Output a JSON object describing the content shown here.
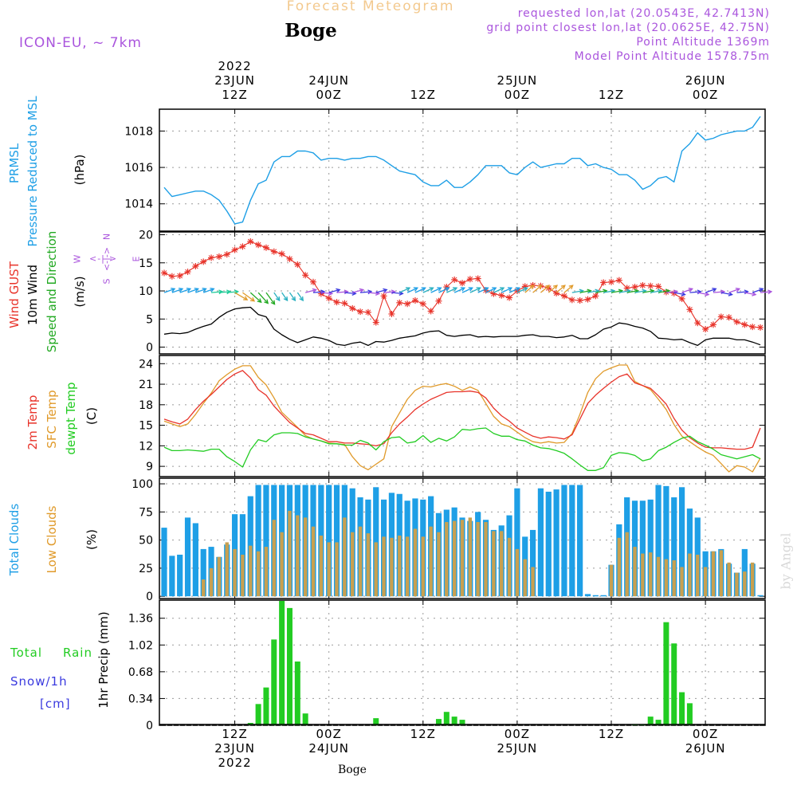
{
  "header": {
    "title": "Forecast Meteogram",
    "location": "Boge",
    "model": "ICON-EU, ~ 7km",
    "requested": "requested lon,lat (20.0543E, 42.7413N)",
    "grid_point": "grid point closest lon,lat (20.0625E, 42.75N)",
    "point_altitude": "Point Altitude 1369m",
    "model_altitude": "Model Point Altitude 1578.75m",
    "footer_location": "Boge",
    "watermark": "by Angel"
  },
  "colors": {
    "pressure": "#1e9fe6",
    "gust": "#e8332a",
    "wind": "#000000",
    "direction": "#22a922",
    "t2m": "#e8332a",
    "sfc": "#e09a2a",
    "dewpt": "#22cc22",
    "total_clouds": "#1e9fe6",
    "low_clouds": "#c8a050",
    "rain": "#22cc22",
    "snow": "#3a3adf",
    "compass": "#aa55dd",
    "header_purple": "#aa55dd",
    "title_orange": "#f3c98e"
  },
  "axes": {
    "top_labels": [
      {
        "top": "2022",
        "mid": "23JUN",
        "bot": "12Z"
      },
      {
        "top": "",
        "mid": "24JUN",
        "bot": "00Z"
      },
      {
        "top": "",
        "mid": "",
        "bot": "12Z"
      },
      {
        "top": "",
        "mid": "25JUN",
        "bot": "00Z"
      },
      {
        "top": "",
        "mid": "",
        "bot": "12Z"
      },
      {
        "top": "",
        "mid": "26JUN",
        "bot": "00Z"
      }
    ],
    "bottom_labels": [
      {
        "a": "12Z",
        "b": "23JUN",
        "c": "2022"
      },
      {
        "a": "00Z",
        "b": "24JUN",
        "c": ""
      },
      {
        "a": "12Z",
        "b": "",
        "c": ""
      },
      {
        "a": "00Z",
        "b": "25JUN",
        "c": ""
      },
      {
        "a": "12Z",
        "b": "",
        "c": ""
      },
      {
        "a": "00Z",
        "b": "26JUN",
        "c": ""
      }
    ]
  },
  "chart_data": [
    {
      "type": "line",
      "panel": "pressure",
      "ylabel_lines": [
        "PRMSL",
        "Pressure Reduced to MSL"
      ],
      "unit": "(hPa)",
      "ylim": [
        1012.5,
        1019.2
      ],
      "yticks": [
        1014,
        1016,
        1018
      ],
      "x_hours_from_first": [
        0,
        1,
        2,
        3,
        4,
        5,
        6,
        7,
        8,
        9,
        10,
        11,
        12,
        13,
        14,
        15,
        16,
        17,
        18,
        19,
        20,
        21,
        22,
        23,
        24,
        25,
        26,
        27,
        28,
        29,
        30,
        31,
        32,
        33,
        34,
        35,
        36,
        37,
        38,
        39,
        40,
        41,
        42,
        43,
        44,
        45,
        46,
        47,
        48,
        49,
        50,
        51,
        52,
        53,
        54,
        55,
        56,
        57,
        58,
        59,
        60,
        61,
        62,
        63,
        64,
        65,
        66,
        67,
        68,
        69,
        70,
        71,
        72,
        73,
        74,
        75,
        76
      ],
      "series": [
        {
          "values": [
            1014.9,
            1014.4,
            1014.5,
            1014.6,
            1014.7,
            1014.7,
            1014.5,
            1014.2,
            1013.6,
            1012.9,
            1013.0,
            1014.2,
            1015.1,
            1015.3,
            1016.3,
            1016.6,
            1016.6,
            1016.9,
            1016.9,
            1016.8,
            1016.4,
            1016.5,
            1016.5,
            1016.4,
            1016.5,
            1016.5,
            1016.6,
            1016.6,
            1016.4,
            1016.1,
            1015.8,
            1015.7,
            1015.6,
            1015.2,
            1015.0,
            1015.0,
            1015.3,
            1014.9,
            1014.9,
            1015.2,
            1015.6,
            1016.1,
            1016.1,
            1016.1,
            1015.7,
            1015.6,
            1016.0,
            1016.3,
            1016.0,
            1016.1,
            1016.2,
            1016.2,
            1016.5,
            1016.5,
            1016.1,
            1016.2,
            1016.0,
            1015.9,
            1015.6,
            1015.6,
            1015.3,
            1014.8,
            1015.0,
            1015.4,
            1015.5,
            1015.2,
            1016.9,
            1017.3,
            1017.9,
            1017.5,
            1017.6,
            1017.8,
            1017.9,
            1018.0,
            1018.0,
            1018.2,
            1018.8
          ]
        }
      ]
    },
    {
      "type": "line",
      "panel": "wind",
      "ylabel_lines": [
        "Wind GUST",
        "10m Wind",
        "Speed and Direction"
      ],
      "unit": "(m/s)",
      "compass": {
        "n": "N",
        "s": "S",
        "w": "W",
        "e": "E",
        "line": "<-|->"
      },
      "ylim": [
        -1.2,
        20.5
      ],
      "yticks": [
        0,
        5,
        10,
        15,
        20
      ],
      "series": [
        {
          "name": "Wind GUST",
          "values": [
            13.2,
            12.6,
            12.7,
            13.4,
            14.4,
            15.2,
            15.9,
            16.1,
            16.5,
            17.3,
            17.9,
            18.8,
            18.2,
            17.7,
            17.0,
            16.6,
            15.7,
            14.7,
            12.8,
            11.6,
            9.5,
            8.7,
            8.0,
            7.8,
            6.9,
            6.3,
            6.2,
            4.4,
            9.1,
            5.9,
            7.9,
            7.7,
            8.3,
            7.7,
            6.4,
            8.2,
            10.7,
            12.0,
            11.4,
            12.1,
            12.2,
            10.1,
            9.5,
            9.2,
            8.8,
            10.0,
            10.8,
            11.0,
            10.9,
            10.5,
            9.6,
            9.1,
            8.4,
            8.3,
            8.5,
            9.1,
            11.5,
            11.6,
            11.9,
            10.5,
            10.7,
            11.0,
            10.9,
            10.8,
            9.8,
            9.6,
            8.6,
            6.7,
            4.3,
            3.2,
            4.0,
            5.4,
            5.3,
            4.5,
            4.0,
            3.6,
            3.5
          ]
        },
        {
          "name": "10m Wind",
          "values": [
            2.3,
            2.5,
            2.4,
            2.6,
            3.2,
            3.7,
            4.1,
            5.3,
            6.2,
            6.8,
            7.0,
            7.1,
            5.8,
            5.4,
            3.2,
            2.2,
            1.4,
            0.8,
            1.3,
            1.8,
            1.6,
            1.2,
            0.5,
            0.3,
            0.7,
            0.9,
            0.3,
            1.0,
            0.9,
            1.2,
            1.6,
            1.8,
            2.0,
            2.5,
            2.8,
            2.9,
            2.1,
            1.9,
            2.1,
            2.2,
            1.8,
            1.9,
            1.8,
            1.9,
            1.9,
            1.9,
            2.1,
            2.2,
            1.9,
            1.9,
            1.7,
            1.8,
            2.1,
            1.5,
            1.5,
            2.2,
            3.2,
            3.6,
            4.3,
            4.1,
            3.7,
            3.4,
            2.8,
            1.6,
            1.5,
            1.3,
            1.4,
            0.8,
            0.3,
            1.3,
            1.6,
            1.6,
            1.6,
            1.3,
            1.3,
            0.9,
            0.4
          ]
        }
      ]
    },
    {
      "type": "line",
      "panel": "temperature",
      "ylabel_lines": [
        "2m Temp",
        "SFC Temp",
        "dewpt Temp"
      ],
      "unit": "(C)",
      "ylim": [
        7.5,
        25.2
      ],
      "yticks": [
        9,
        12,
        15,
        18,
        21,
        24
      ],
      "series": [
        {
          "name": "2m Temp",
          "values": [
            15.9,
            15.5,
            15.2,
            15.9,
            17.3,
            18.5,
            19.5,
            20.6,
            21.7,
            22.5,
            23.0,
            21.9,
            20.2,
            19.4,
            17.8,
            16.6,
            15.4,
            14.6,
            13.8,
            13.6,
            13.1,
            12.6,
            12.6,
            12.4,
            12.4,
            12.3,
            12.2,
            12.0,
            12.3,
            13.9,
            15.2,
            16.2,
            17.3,
            18.1,
            18.8,
            19.3,
            19.8,
            19.9,
            19.9,
            20.0,
            19.8,
            19.0,
            17.5,
            16.4,
            15.6,
            14.6,
            14.0,
            13.4,
            13.1,
            13.3,
            13.2,
            13.0,
            13.6,
            15.9,
            18.2,
            19.4,
            20.4,
            21.3,
            22.1,
            22.5,
            21.2,
            20.8,
            20.4,
            19.3,
            18.1,
            16.0,
            14.3,
            13.2,
            12.4,
            11.8,
            11.7,
            11.7,
            11.6,
            11.5,
            11.5,
            11.8,
            14.6
          ]
        },
        {
          "name": "SFC Temp",
          "values": [
            15.6,
            15.2,
            14.8,
            15.2,
            16.6,
            18.2,
            19.7,
            21.5,
            22.4,
            23.2,
            23.7,
            23.7,
            22.0,
            20.9,
            19.0,
            16.9,
            15.8,
            14.7,
            13.5,
            13.0,
            12.7,
            12.4,
            12.3,
            12.2,
            10.4,
            9.1,
            8.5,
            9.3,
            10.1,
            14.8,
            16.8,
            18.8,
            20.1,
            20.7,
            20.6,
            20.9,
            21.1,
            20.7,
            20.1,
            20.6,
            20.1,
            18.2,
            16.3,
            15.2,
            14.8,
            14.0,
            13.2,
            12.6,
            12.4,
            12.6,
            12.4,
            12.5,
            13.8,
            16.6,
            19.8,
            21.8,
            22.9,
            23.4,
            23.8,
            23.8,
            21.4,
            20.8,
            20.2,
            18.8,
            17.3,
            15.1,
            13.4,
            12.6,
            11.8,
            11.1,
            10.6,
            9.4,
            8.2,
            9.1,
            8.9,
            8.2,
            10.2
          ]
        },
        {
          "name": "dewpt Temp",
          "values": [
            11.8,
            11.3,
            11.3,
            11.4,
            11.3,
            11.2,
            11.5,
            11.5,
            10.4,
            9.7,
            8.9,
            11.4,
            12.9,
            12.6,
            13.6,
            13.9,
            13.9,
            13.8,
            13.3,
            13.0,
            12.7,
            12.3,
            12.3,
            12.1,
            12.1,
            12.8,
            12.4,
            11.4,
            12.6,
            13.2,
            13.3,
            12.4,
            12.6,
            13.5,
            12.5,
            13.1,
            12.7,
            13.3,
            14.4,
            14.3,
            14.5,
            14.6,
            13.8,
            13.4,
            13.4,
            12.9,
            12.7,
            12.1,
            11.7,
            11.6,
            11.3,
            10.9,
            10.1,
            9.2,
            8.4,
            8.4,
            8.8,
            10.6,
            11.0,
            10.9,
            10.6,
            9.8,
            10.1,
            11.3,
            11.8,
            12.5,
            13.1,
            13.4,
            12.6,
            12.1,
            11.5,
            10.7,
            10.4,
            10.1,
            10.4,
            10.7,
            10.1
          ]
        }
      ]
    },
    {
      "type": "bar",
      "panel": "clouds",
      "ylabel_lines": [
        "Total Clouds",
        "Low Clouds"
      ],
      "unit": "(%)",
      "ylim": [
        -2,
        105
      ],
      "yticks": [
        0,
        25,
        50,
        75,
        100
      ],
      "series": [
        {
          "name": "Total Clouds",
          "values": [
            61,
            36,
            37,
            70,
            65,
            42,
            44,
            35,
            46,
            73,
            73,
            89,
            99,
            99,
            99,
            99,
            99,
            99,
            99,
            99,
            99,
            99,
            99,
            99,
            96,
            88,
            86,
            97,
            86,
            92,
            91,
            85,
            87,
            86,
            89,
            74,
            77,
            79,
            70,
            67,
            75,
            68,
            59,
            63,
            72,
            96,
            53,
            59,
            96,
            93,
            95,
            99,
            99,
            99,
            2,
            1,
            1,
            28,
            64,
            88,
            85,
            85,
            86,
            99,
            98,
            88,
            97,
            78,
            70,
            40,
            40,
            42,
            29,
            21,
            42,
            29,
            1
          ]
        },
        {
          "name": "Low Clouds",
          "values": [
            0,
            0,
            0,
            0,
            0,
            15,
            25,
            35,
            48,
            42,
            37,
            45,
            40,
            44,
            68,
            57,
            76,
            72,
            70,
            62,
            54,
            48,
            48,
            70,
            57,
            62,
            56,
            48,
            53,
            52,
            54,
            53,
            60,
            53,
            62,
            57,
            66,
            67,
            68,
            70,
            66,
            66,
            58,
            58,
            52,
            42,
            33,
            26,
            0,
            0,
            0,
            0,
            0,
            0,
            0,
            0,
            0,
            28,
            52,
            57,
            44,
            38,
            39,
            35,
            33,
            32,
            26,
            38,
            37,
            26,
            40,
            41,
            30,
            21,
            22,
            30,
            0
          ]
        }
      ]
    },
    {
      "type": "bar",
      "panel": "precip",
      "ylabel_lines": [
        "1hr Precip (mm)"
      ],
      "left_labels": [
        "Total",
        "Rain",
        "Snow/1h",
        "[cm]"
      ],
      "ylim": [
        0,
        1.59
      ],
      "yticks": [
        0,
        0.34,
        0.68,
        1.02,
        1.36
      ],
      "ytick_labels": [
        "0",
        "0.34",
        "0.68",
        "1.02",
        "1.36"
      ],
      "series": [
        {
          "name": "Rain",
          "values": [
            0,
            0,
            0,
            0,
            0,
            0,
            0,
            0,
            0,
            0,
            0,
            0.03,
            0.27,
            0.48,
            1.09,
            1.58,
            1.49,
            0.81,
            0.15,
            0,
            0,
            0,
            0,
            0,
            0,
            0,
            0,
            0.09,
            0,
            0,
            0,
            0,
            0,
            0,
            0,
            0.08,
            0.17,
            0.11,
            0.07,
            0,
            0,
            0,
            0,
            0,
            0,
            0,
            0,
            0,
            0,
            0,
            0,
            0,
            0,
            0,
            0,
            0,
            0,
            0,
            0,
            0,
            0.01,
            0.01,
            0.11,
            0.07,
            1.31,
            1.04,
            0.42,
            0.28,
            0,
            0,
            0,
            0,
            0,
            0,
            0,
            0,
            0
          ]
        },
        {
          "name": "Snow",
          "values": [
            0,
            0,
            0,
            0,
            0,
            0,
            0,
            0,
            0,
            0,
            0,
            0,
            0,
            0,
            0,
            0,
            0,
            0,
            0,
            0,
            0,
            0,
            0,
            0,
            0,
            0,
            0,
            0,
            0,
            0,
            0,
            0,
            0,
            0,
            0,
            0,
            0,
            0,
            0,
            0,
            0,
            0,
            0,
            0,
            0,
            0,
            0,
            0,
            0,
            0,
            0,
            0,
            0,
            0,
            0,
            0,
            0,
            0,
            0,
            0,
            0,
            0,
            0,
            0,
            0,
            0,
            0,
            0,
            0,
            0,
            0,
            0,
            0,
            0,
            0,
            0,
            0
          ]
        }
      ]
    }
  ]
}
